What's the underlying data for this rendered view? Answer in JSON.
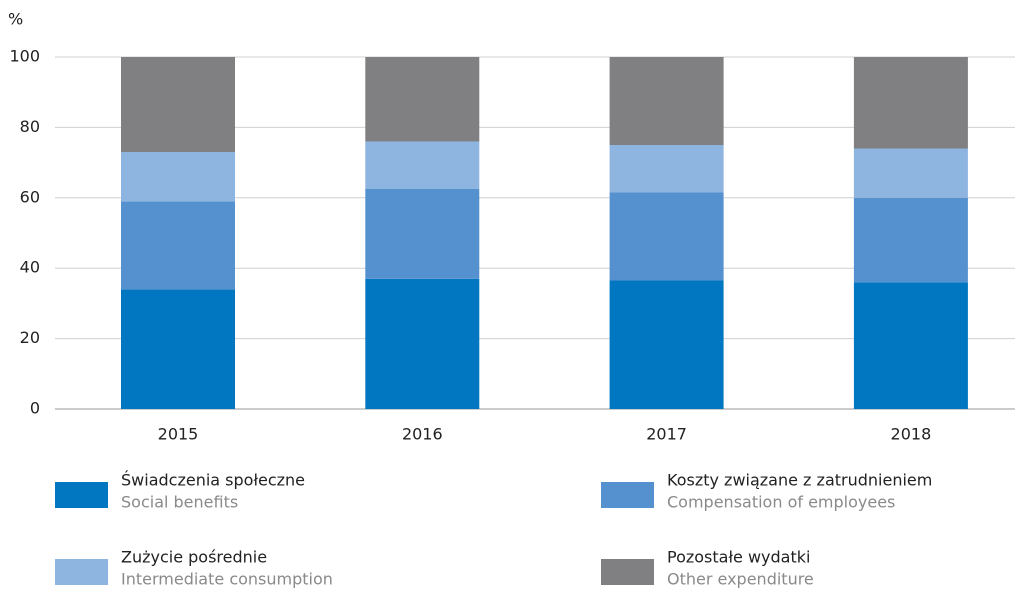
{
  "chart_data": {
    "type": "stacked_bar",
    "y_label": "%",
    "categories": [
      "2015",
      "2016",
      "2017",
      "2018"
    ],
    "series": [
      {
        "name": "Świadczenia społeczne",
        "name_en": "Social benefits",
        "color": "#0077c0",
        "values": [
          34,
          37,
          36.5,
          36
        ]
      },
      {
        "name": "Koszty związane z zatrudnieniem",
        "name_en": "Compensation of employees",
        "color": "#5591cf",
        "values": [
          25,
          25.5,
          25,
          24
        ]
      },
      {
        "name": "Zużycie pośrednie",
        "name_en": "Intermediate consumption",
        "color": "#8eb4e0",
        "values": [
          14,
          13.5,
          13.5,
          14
        ]
      },
      {
        "name": "Pozostałe wydatki",
        "name_en": "Other expenditure",
        "color": "#808083",
        "values": [
          27,
          24,
          25,
          26
        ]
      }
    ],
    "ylim": [
      0,
      100
    ],
    "yticks": [
      0,
      20,
      40,
      60,
      80,
      100
    ],
    "grid": true
  }
}
